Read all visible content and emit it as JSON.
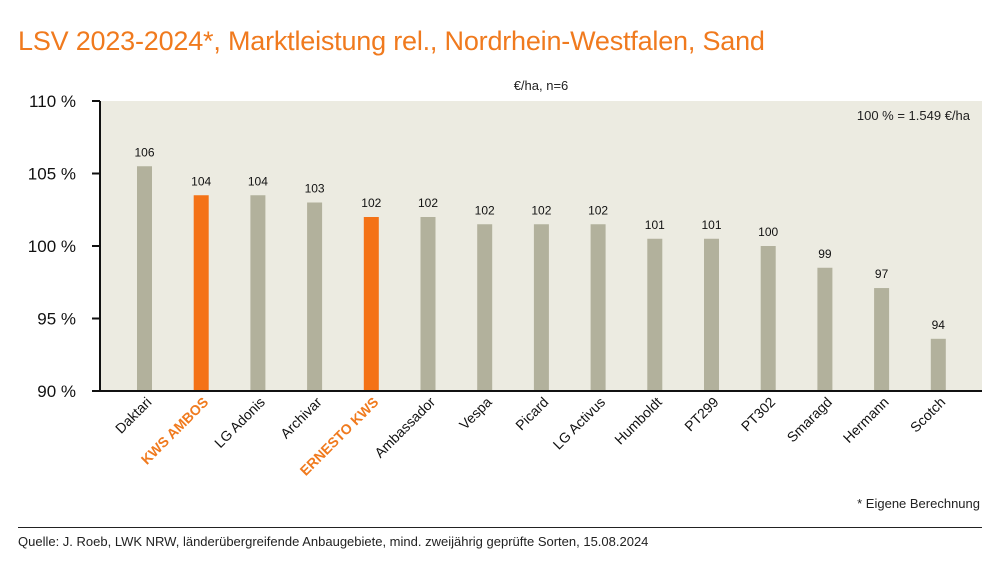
{
  "title": "LSV 2023-2024*, Marktleistung rel., Nordrhein-Westfalen, Sand",
  "footnote": "* Eigene Berechnung",
  "source": "Quelle: J. Roeb, LWK NRW, länderübergreifende Anbaugebiete, mind. zweijährig geprüfte Sorten, 15.08.2024",
  "colors": {
    "background_plot": "#ecebe1",
    "bar_default": "#b2b19c",
    "bar_highlight": "#f47216",
    "accent_text": "#f07a1e",
    "axis": "#111111"
  },
  "chart_data": {
    "type": "bar",
    "title": "LSV 2023-2024*, Marktleistung rel., Nordrhein-Westfalen, Sand",
    "subtitle": "€/ha, n=6",
    "annotation": "100 % = 1.549 €/ha",
    "xlabel": "",
    "ylabel": "",
    "ylim": [
      90,
      110
    ],
    "yticks": [
      90,
      95,
      100,
      105,
      110
    ],
    "ytick_labels": [
      "90 %",
      "95 %",
      "100 %",
      "105 %",
      "110 %"
    ],
    "grid": false,
    "categories": [
      "Daktari",
      "KWS AMBOS",
      "LG Adonis",
      "Archivar",
      "ERNESTO KWS",
      "Ambassador",
      "Vespa",
      "Picard",
      "LG Activus",
      "Humboldt",
      "PT299",
      "PT302",
      "Smaragd",
      "Hermann",
      "Scotch"
    ],
    "values": [
      105.5,
      103.5,
      103.5,
      103.0,
      102.0,
      102.0,
      101.5,
      101.5,
      101.5,
      100.5,
      100.5,
      100.0,
      98.5,
      97.1,
      93.6
    ],
    "value_labels": [
      "106",
      "104",
      "104",
      "103",
      "102",
      "102",
      "102",
      "102",
      "102",
      "101",
      "101",
      "100",
      "99",
      "97",
      "94"
    ],
    "highlighted": [
      "KWS AMBOS",
      "ERNESTO KWS"
    ]
  }
}
